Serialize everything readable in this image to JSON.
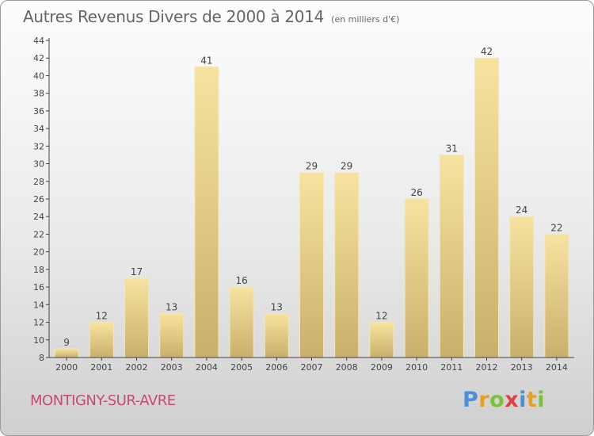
{
  "title": "Autres Revenus Divers de 2000 à 2014",
  "unit": "(en milliers d'€)",
  "commune": "MONTIGNY-SUR-AVRE",
  "logo": {
    "letters": [
      {
        "ch": "P",
        "color": "#4a90d9"
      },
      {
        "ch": "r",
        "color": "#e8a020"
      },
      {
        "ch": "o",
        "color": "#7cc040"
      },
      {
        "ch": "x",
        "color": "#e04040"
      },
      {
        "ch": "i",
        "color": "#4a90d9"
      },
      {
        "ch": "t",
        "color": "#e8a020"
      },
      {
        "ch": "i",
        "color": "#7cc040"
      }
    ]
  },
  "chart_data": {
    "type": "bar",
    "categories": [
      "2000",
      "2001",
      "2002",
      "2003",
      "2004",
      "2005",
      "2006",
      "2007",
      "2008",
      "2009",
      "2010",
      "2011",
      "2012",
      "2013",
      "2014"
    ],
    "values": [
      9,
      12,
      17,
      13,
      41,
      16,
      13,
      29,
      29,
      12,
      26,
      31,
      42,
      24,
      22
    ],
    "ylim": [
      8,
      44
    ],
    "yticks": [
      8,
      10,
      12,
      14,
      16,
      18,
      20,
      22,
      24,
      26,
      28,
      30,
      32,
      34,
      36,
      38,
      40,
      42,
      44
    ],
    "grid": false,
    "bar_color": "#e3c77f",
    "bar_color_light": "#f7e3a0",
    "axis_color": "#444444",
    "label_color": "#444444"
  }
}
